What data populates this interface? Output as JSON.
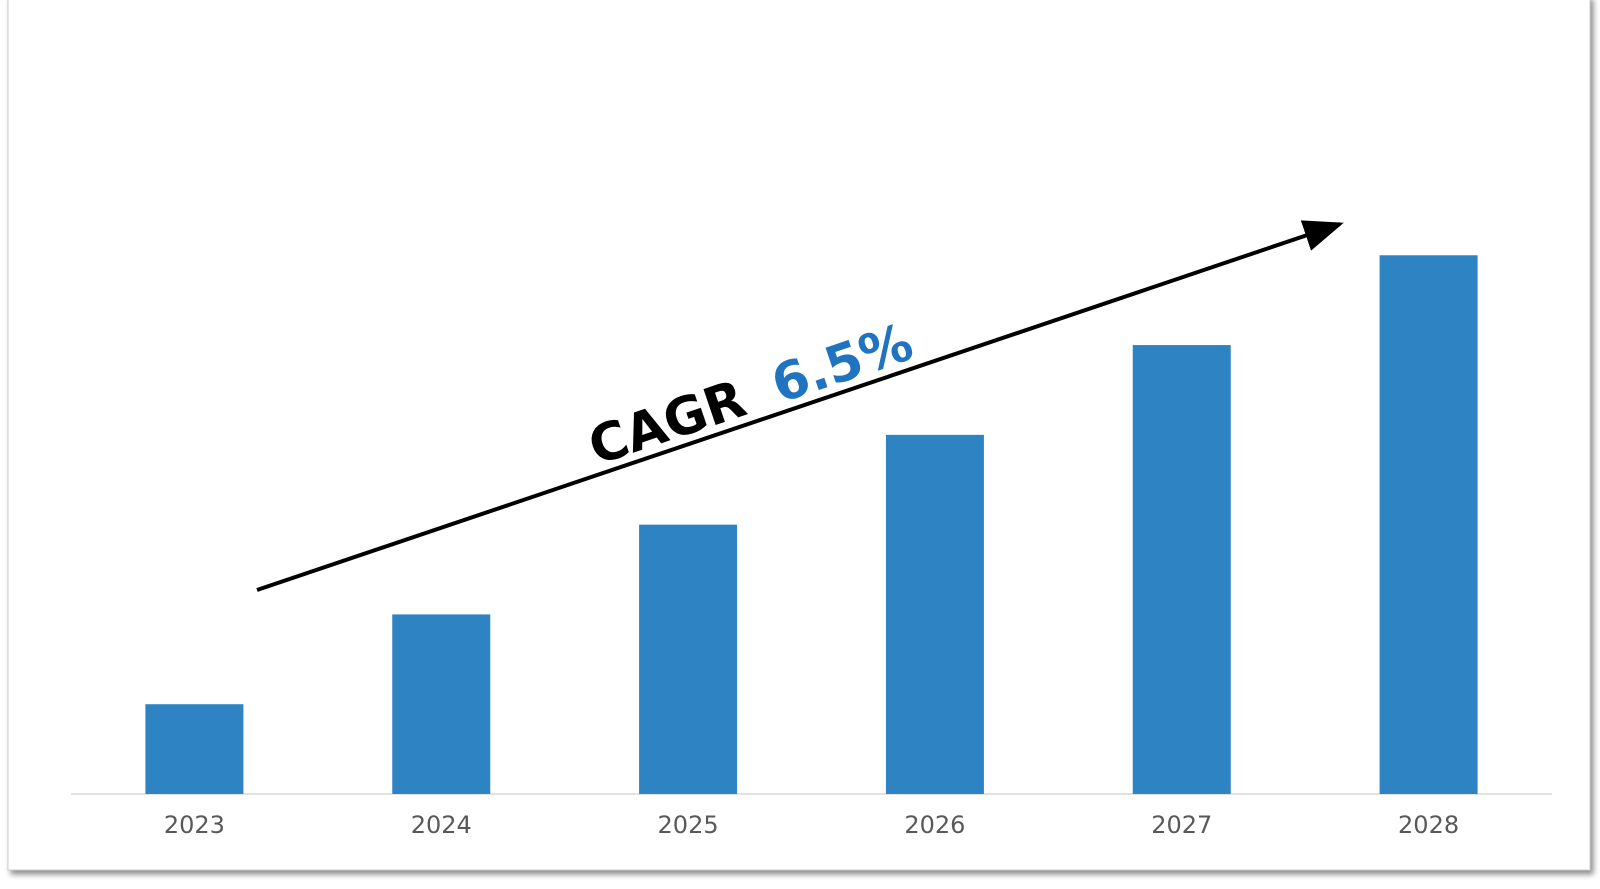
{
  "chart_data": {
    "type": "bar",
    "categories": [
      "2023",
      "2024",
      "2025",
      "2026",
      "2027",
      "2028"
    ],
    "values": [
      1,
      2,
      3,
      4,
      5,
      6
    ],
    "color": "#2e83c3",
    "ylim": [
      0,
      7
    ],
    "annotation": {
      "text": "CAGR",
      "highlight": "6.5%",
      "highlight_color": "#1f73c0"
    }
  }
}
